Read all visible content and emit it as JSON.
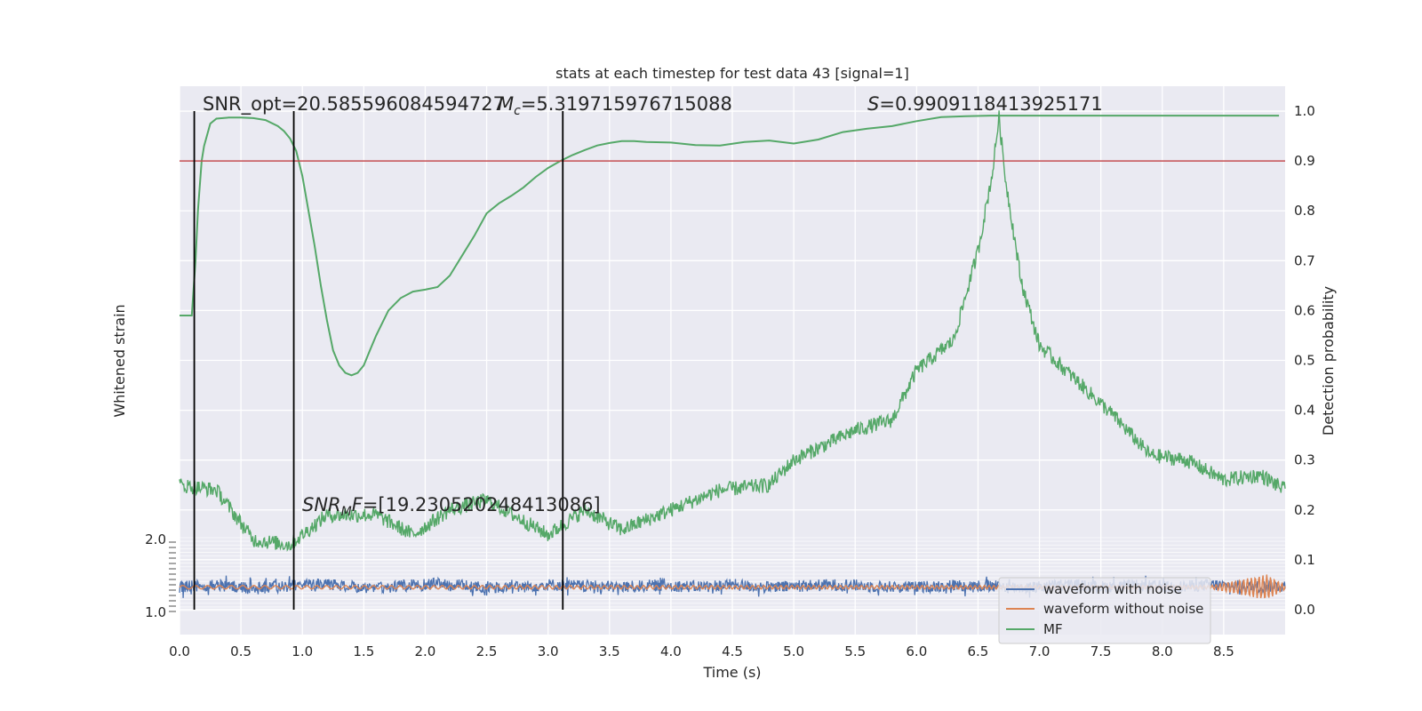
{
  "chart_data": {
    "type": "line",
    "title": "stats at each timestep for test data 43 [signal=1]",
    "xlabel": "Time (s)",
    "ylabel_left": "Whitened strain",
    "ylabel_right": "Detection probability",
    "xlim": [
      0.0,
      9.0
    ],
    "ylim_right": [
      -0.05,
      1.05
    ],
    "x_ticks": [
      "0.0",
      "0.5",
      "1.0",
      "1.5",
      "2.0",
      "2.5",
      "3.0",
      "3.5",
      "4.0",
      "4.5",
      "5.0",
      "5.5",
      "6.0",
      "6.5",
      "7.0",
      "7.5",
      "8.0",
      "8.5"
    ],
    "y_ticks_right": [
      "0.0",
      "0.1",
      "0.2",
      "0.3",
      "0.4",
      "0.5",
      "0.6",
      "0.7",
      "0.8",
      "0.9",
      "1.0"
    ],
    "y_ticks_left": [
      "2.0",
      "1.0"
    ],
    "grid": true,
    "legend_placement": "lower-right",
    "legend": [
      "waveform with noise",
      "waveform without noise",
      "MF"
    ],
    "annotations": {
      "snr_opt": "SNR_opt=20.585596084594727",
      "mc_sym": "M",
      "mc_sub": "c",
      "mc_val": "=5.319715976715088",
      "s_sym": "S",
      "s_val": "=0.9909118413925171",
      "snr_mf_sym": "SNR",
      "snr_mf_sub": "M",
      "snr_mf_f": "F",
      "snr_mf_val": "=[19.230520248413086]"
    },
    "threshold": 0.9,
    "vertical_lines_x": [
      0.12,
      0.93,
      3.12
    ],
    "series": [
      {
        "name": "MF",
        "x": [
          0.0,
          0.05,
          0.1,
          0.13,
          0.15,
          0.18,
          0.2,
          0.25,
          0.3,
          0.4,
          0.5,
          0.6,
          0.7,
          0.8,
          0.85,
          0.9,
          0.95,
          1.0,
          1.05,
          1.1,
          1.15,
          1.2,
          1.25,
          1.3,
          1.35,
          1.4,
          1.45,
          1.5,
          1.55,
          1.6,
          1.7,
          1.8,
          1.9,
          2.0,
          2.1,
          2.2,
          2.3,
          2.4,
          2.5,
          2.6,
          2.7,
          2.8,
          2.9,
          3.0,
          3.1,
          3.2,
          3.3,
          3.4,
          3.5,
          3.6,
          3.7,
          3.8,
          4.0,
          4.2,
          4.4,
          4.6,
          4.8,
          5.0,
          5.2,
          5.4,
          5.6,
          5.8,
          6.0,
          6.2,
          6.4,
          6.6,
          6.8,
          7.0,
          8.0,
          8.95
        ],
        "values": [
          0.59,
          0.59,
          0.59,
          0.7,
          0.8,
          0.9,
          0.93,
          0.975,
          0.985,
          0.987,
          0.987,
          0.986,
          0.982,
          0.97,
          0.96,
          0.945,
          0.92,
          0.87,
          0.8,
          0.73,
          0.65,
          0.58,
          0.52,
          0.49,
          0.475,
          0.47,
          0.475,
          0.49,
          0.52,
          0.55,
          0.6,
          0.625,
          0.638,
          0.642,
          0.647,
          0.67,
          0.71,
          0.75,
          0.795,
          0.815,
          0.83,
          0.847,
          0.868,
          0.886,
          0.9,
          0.912,
          0.922,
          0.931,
          0.936,
          0.94,
          0.94,
          0.938,
          0.937,
          0.932,
          0.931,
          0.938,
          0.941,
          0.935,
          0.943,
          0.958,
          0.965,
          0.97,
          0.98,
          0.988,
          0.99,
          0.991,
          0.991,
          0.991,
          0.991,
          0.991
        ]
      },
      {
        "name": "waveform with noise",
        "x": [
          0.0,
          0.3,
          0.6,
          0.9,
          1.2,
          1.5,
          1.8,
          2.1,
          2.4,
          2.7,
          3.0,
          3.3,
          3.6,
          3.9,
          4.2,
          4.5,
          4.8,
          5.1,
          5.4,
          5.7,
          6.0,
          6.3,
          6.6,
          6.9,
          7.2,
          7.5,
          7.8,
          8.1,
          8.4,
          8.7,
          9.0
        ],
        "values": [
          0.045,
          0.05,
          0.042,
          0.048,
          0.05,
          0.044,
          0.047,
          0.052,
          0.046,
          0.044,
          0.05,
          0.047,
          0.045,
          0.049,
          0.046,
          0.05,
          0.044,
          0.048,
          0.05,
          0.046,
          0.045,
          0.049,
          0.047,
          0.044,
          0.05,
          0.046,
          0.048,
          0.045,
          0.05,
          0.046,
          0.048
        ]
      },
      {
        "name": "waveform without noise",
        "x": [
          0.0,
          1.0,
          2.0,
          3.0,
          4.0,
          5.0,
          6.0,
          7.0,
          8.0,
          8.5,
          8.8,
          8.9,
          9.0
        ],
        "values": [
          0.045,
          0.045,
          0.045,
          0.045,
          0.045,
          0.045,
          0.045,
          0.045,
          0.045,
          0.045,
          0.045,
          0.045,
          0.045
        ]
      }
    ]
  }
}
